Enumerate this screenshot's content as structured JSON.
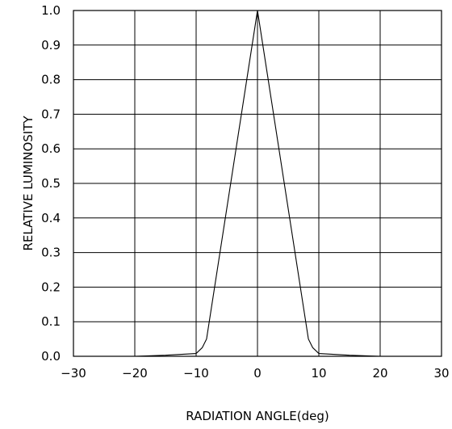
{
  "chart_data": {
    "type": "line",
    "title": "",
    "xlabel": "RADIATION ANGLE(deg)",
    "ylabel": "RELATIVE LUMINOSITY",
    "xlim": [
      -30,
      30
    ],
    "ylim": [
      0,
      1.0
    ],
    "x_ticks": [
      -30,
      -20,
      -10,
      0,
      10,
      20,
      30
    ],
    "y_ticks": [
      0.0,
      0.1,
      0.2,
      0.3,
      0.4,
      0.5,
      0.6,
      0.7,
      0.8,
      0.9,
      1.0
    ],
    "x_tick_labels": [
      "−30",
      "−20",
      "−10",
      "0",
      "10",
      "20",
      "30"
    ],
    "y_tick_labels": [
      "0.0",
      "0.1",
      "0.2",
      "0.3",
      "0.4",
      "0.5",
      "0.6",
      "0.7",
      "0.8",
      "0.9",
      "1.0"
    ],
    "grid": true,
    "series": [
      {
        "x": [
          -20,
          -15,
          -10,
          -9,
          -8.3,
          0,
          8.3,
          9,
          10,
          15,
          20
        ],
        "y": [
          0.0,
          0.003,
          0.008,
          0.025,
          0.05,
          1.0,
          0.05,
          0.025,
          0.008,
          0.003,
          0.0
        ]
      }
    ]
  }
}
